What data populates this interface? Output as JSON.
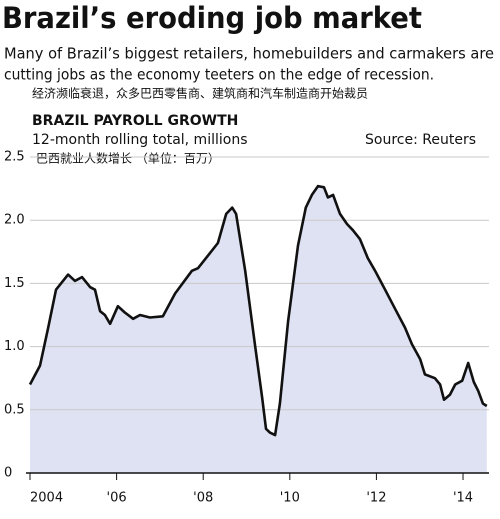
{
  "chart_data": {
    "type": "area",
    "title": "Brazil’s eroding job market",
    "subtitle": [
      "Many of Brazil’s biggest retailers, homebuilders and carmakers are",
      "cutting jobs as the economy teeters on the edge of recession."
    ],
    "subtitle_zh": "经济濒临衰退，众多巴西零售商、建筑商和汽车制造商开始裁员",
    "chart_title": "BRAZIL PAYROLL GROWTH",
    "y_label": "12-month rolling total, millions",
    "y_label_zh": "巴西就业人数增长 （单位：百万）",
    "source": "Source: Reuters",
    "x": [
      2004.0,
      2004.23,
      2004.42,
      2004.6,
      2004.88,
      2005.04,
      2005.2,
      2005.39,
      2005.5,
      2005.62,
      2005.73,
      2005.85,
      2006.03,
      2006.19,
      2006.38,
      2006.54,
      2006.77,
      2007.07,
      2007.35,
      2007.74,
      2007.88,
      2008.11,
      2008.34,
      2008.53,
      2008.67,
      2008.76,
      2008.97,
      2009.2,
      2009.36,
      2009.45,
      2009.54,
      2009.66,
      2009.77,
      2009.96,
      2010.19,
      2010.37,
      2010.51,
      2010.65,
      2010.79,
      2010.88,
      2011.0,
      2011.16,
      2011.32,
      2011.46,
      2011.62,
      2011.8,
      2011.97,
      2012.2,
      2012.43,
      2012.66,
      2012.82,
      2013.01,
      2013.12,
      2013.35,
      2013.47,
      2013.56,
      2013.7,
      2013.82,
      2013.98,
      2014.12,
      2014.25,
      2014.35,
      2014.46,
      2014.55
    ],
    "values": [
      0.7,
      0.85,
      1.15,
      1.45,
      1.57,
      1.52,
      1.55,
      1.47,
      1.45,
      1.28,
      1.25,
      1.18,
      1.32,
      1.27,
      1.22,
      1.25,
      1.23,
      1.24,
      1.42,
      1.6,
      1.62,
      1.72,
      1.82,
      2.05,
      2.1,
      2.05,
      1.6,
      1.0,
      0.6,
      0.35,
      0.32,
      0.3,
      0.55,
      1.2,
      1.8,
      2.1,
      2.2,
      2.27,
      2.26,
      2.18,
      2.2,
      2.05,
      1.97,
      1.92,
      1.85,
      1.7,
      1.6,
      1.45,
      1.3,
      1.15,
      1.02,
      0.9,
      0.78,
      0.75,
      0.7,
      0.58,
      0.62,
      0.7,
      0.73,
      0.87,
      0.72,
      0.65,
      0.55,
      0.53
    ],
    "color": "#111111",
    "fill_color": "#dfe2f3",
    "xlim": [
      2004,
      2014.6
    ],
    "xticks": [
      2004,
      {
        "value": 2006,
        "label": "'06"
      },
      {
        "value": 2008,
        "label": "'08"
      },
      {
        "value": 2010,
        "label": "'10"
      },
      {
        "value": 2012,
        "label": "'12"
      },
      {
        "value": 2014,
        "label": "'14"
      }
    ],
    "ylim": [
      0,
      2.5
    ],
    "yticks": [
      0,
      0.5,
      {
        "value": 1,
        "label": "1.0"
      },
      1.5,
      {
        "value": 2,
        "label": "2.0"
      },
      2.5
    ],
    "grid": true
  }
}
